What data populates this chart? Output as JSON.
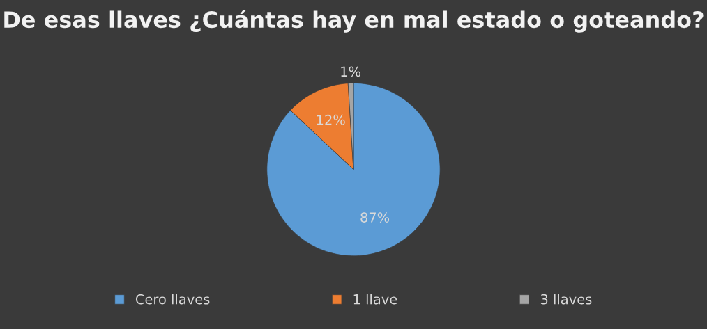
{
  "chart_data": {
    "type": "pie",
    "title": "De esas llaves ¿Cuántas hay en mal estado o goteando?",
    "categories": [
      "Cero llaves",
      "1 llave",
      "3 llaves"
    ],
    "values": [
      87,
      12,
      1
    ],
    "colors": [
      "#5b9bd5",
      "#ed7d31",
      "#a5a5a5"
    ],
    "value_labels": [
      "87%",
      "12%",
      "1%"
    ],
    "legend": "bottom"
  }
}
